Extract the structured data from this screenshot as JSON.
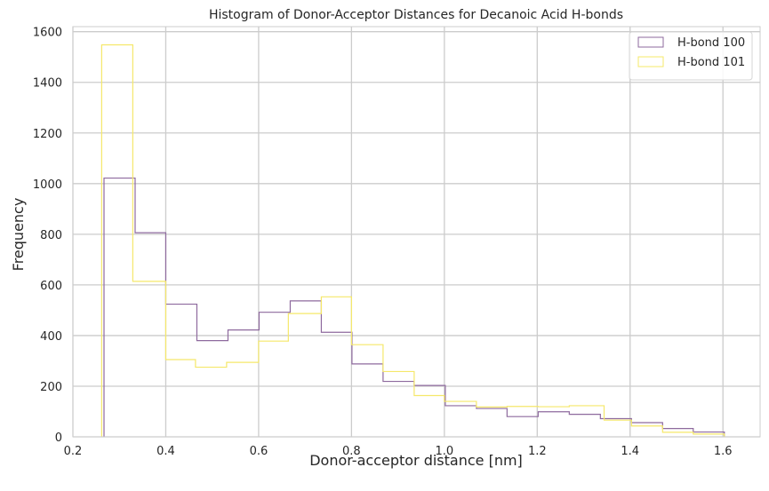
{
  "chart_data": {
    "type": "histogram",
    "title": "Histogram of Donor-Acceptor Distances for Decanoic Acid H-bonds",
    "xlabel": "Donor-acceptor distance [nm]",
    "ylabel": "Frequency",
    "xlim": [
      0.2,
      1.68
    ],
    "ylim": [
      0,
      1620
    ],
    "xticks": [
      0.2,
      0.4,
      0.6,
      0.8,
      1.0,
      1.2,
      1.4,
      1.6
    ],
    "xtick_labels": [
      "0.2",
      "0.4",
      "0.6",
      "0.8",
      "1.0",
      "1.2",
      "1.4",
      "1.6"
    ],
    "yticks": [
      0,
      200,
      400,
      600,
      800,
      1000,
      1200,
      1400,
      1600
    ],
    "ytick_labels": [
      "0",
      "200",
      "400",
      "600",
      "800",
      "1000",
      "1200",
      "1400",
      "1600"
    ],
    "grid": true,
    "legend_position": "top-right",
    "series": [
      {
        "name": "H-bond 100",
        "color": "#8e6a9e",
        "bin_edges": [
          0.267,
          0.334,
          0.4,
          0.467,
          0.534,
          0.601,
          0.668,
          0.735,
          0.801,
          0.868,
          0.935,
          1.002,
          1.069,
          1.135,
          1.202,
          1.269,
          1.336,
          1.403,
          1.47,
          1.536,
          1.603
        ],
        "counts": [
          1022,
          806,
          524,
          380,
          422,
          492,
          537,
          413,
          288,
          219,
          203,
          123,
          112,
          80,
          99,
          89,
          72,
          56,
          33,
          19
        ]
      },
      {
        "name": "H-bond 101",
        "color": "#f5e86a",
        "bin_edges": [
          0.262,
          0.329,
          0.4,
          0.464,
          0.531,
          0.6,
          0.664,
          0.735,
          0.8,
          0.868,
          0.935,
          1.0,
          1.069,
          1.135,
          1.202,
          1.269,
          1.344,
          1.403,
          1.47,
          1.536,
          1.603
        ],
        "counts": [
          1548,
          614,
          305,
          275,
          294,
          378,
          487,
          553,
          364,
          258,
          163,
          140,
          118,
          120,
          119,
          123,
          66,
          43,
          18,
          11
        ]
      }
    ]
  }
}
